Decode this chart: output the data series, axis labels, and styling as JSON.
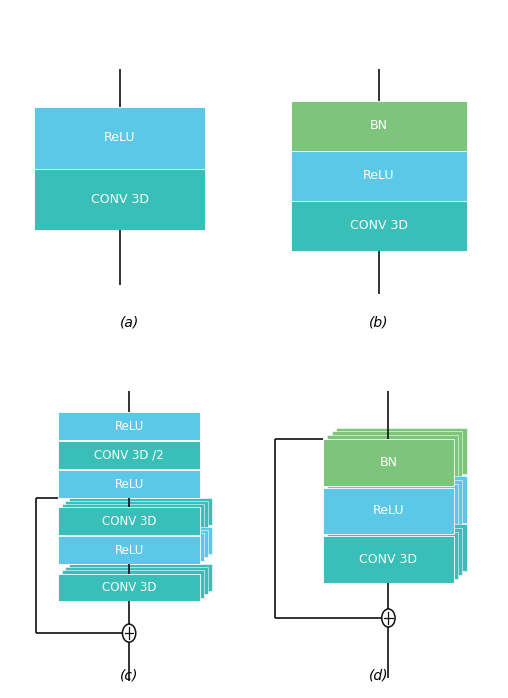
{
  "color_relu": "#5BC8E8",
  "color_conv": "#3ABFB8",
  "color_bn": "#7DC57A",
  "color_line": "#111111",
  "subplot_labels": [
    "(a)",
    "(b)",
    "(c)",
    "(d)"
  ],
  "font_size_label": 10,
  "font_size_box": 9
}
